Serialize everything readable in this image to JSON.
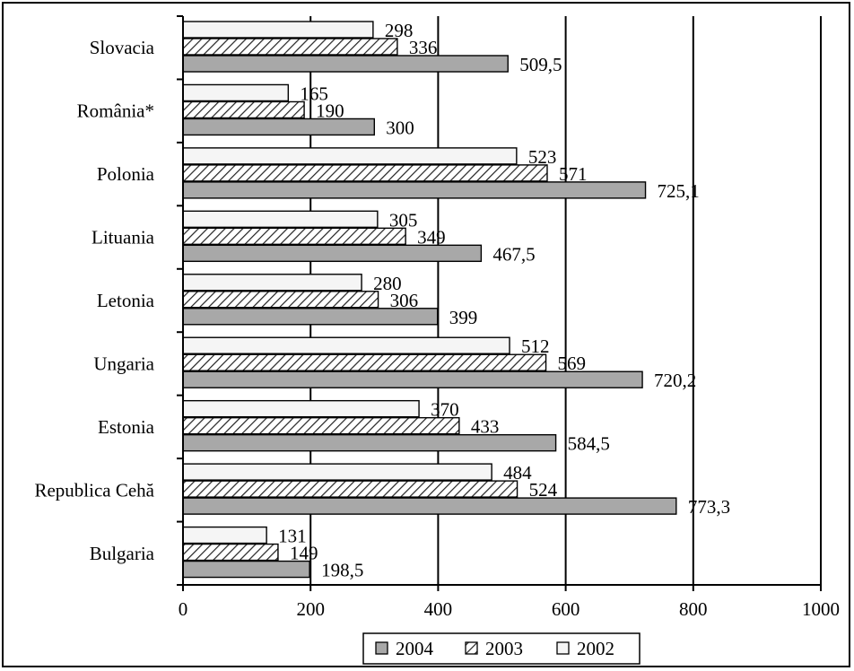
{
  "chart_data": {
    "type": "bar",
    "orientation": "horizontal",
    "categories": [
      "Slovacia",
      "România*",
      "Polonia",
      "Lituania",
      "Letonia",
      "Ungaria",
      "Estonia",
      "Republica Cehă",
      "Bulgaria"
    ],
    "series": [
      {
        "name": "2002",
        "values": [
          298,
          165,
          523,
          305,
          280,
          512,
          370,
          484,
          131
        ],
        "labels": [
          "298",
          "165",
          "523",
          "305",
          "280",
          "512",
          "370",
          "484",
          "131"
        ],
        "fill": "#f5f5f5",
        "pattern": "none"
      },
      {
        "name": "2003",
        "values": [
          336,
          190,
          571,
          349,
          306,
          569,
          433,
          524,
          149
        ],
        "labels": [
          "336",
          "190",
          "571",
          "349",
          "306",
          "569",
          "433",
          "524",
          "149"
        ],
        "fill": "#ffffff",
        "pattern": "hatch"
      },
      {
        "name": "2004",
        "values": [
          509.5,
          300,
          725.1,
          467.5,
          399,
          720.2,
          584.5,
          773.3,
          198.5
        ],
        "labels": [
          "509,5",
          "300",
          "725,1",
          "467,5",
          "399",
          "720,2",
          "584,5",
          "773,3",
          "198,5"
        ],
        "fill": "#a8a8a8",
        "pattern": "none"
      }
    ],
    "xlim": [
      0,
      1000
    ],
    "xticks": [
      "0",
      "200",
      "400",
      "600",
      "800",
      "1000"
    ],
    "grid": "vertical",
    "legend": {
      "position": "bottom",
      "order": [
        "2004",
        "2003",
        "2002"
      ]
    },
    "title": "",
    "xlabel": "",
    "ylabel": ""
  }
}
